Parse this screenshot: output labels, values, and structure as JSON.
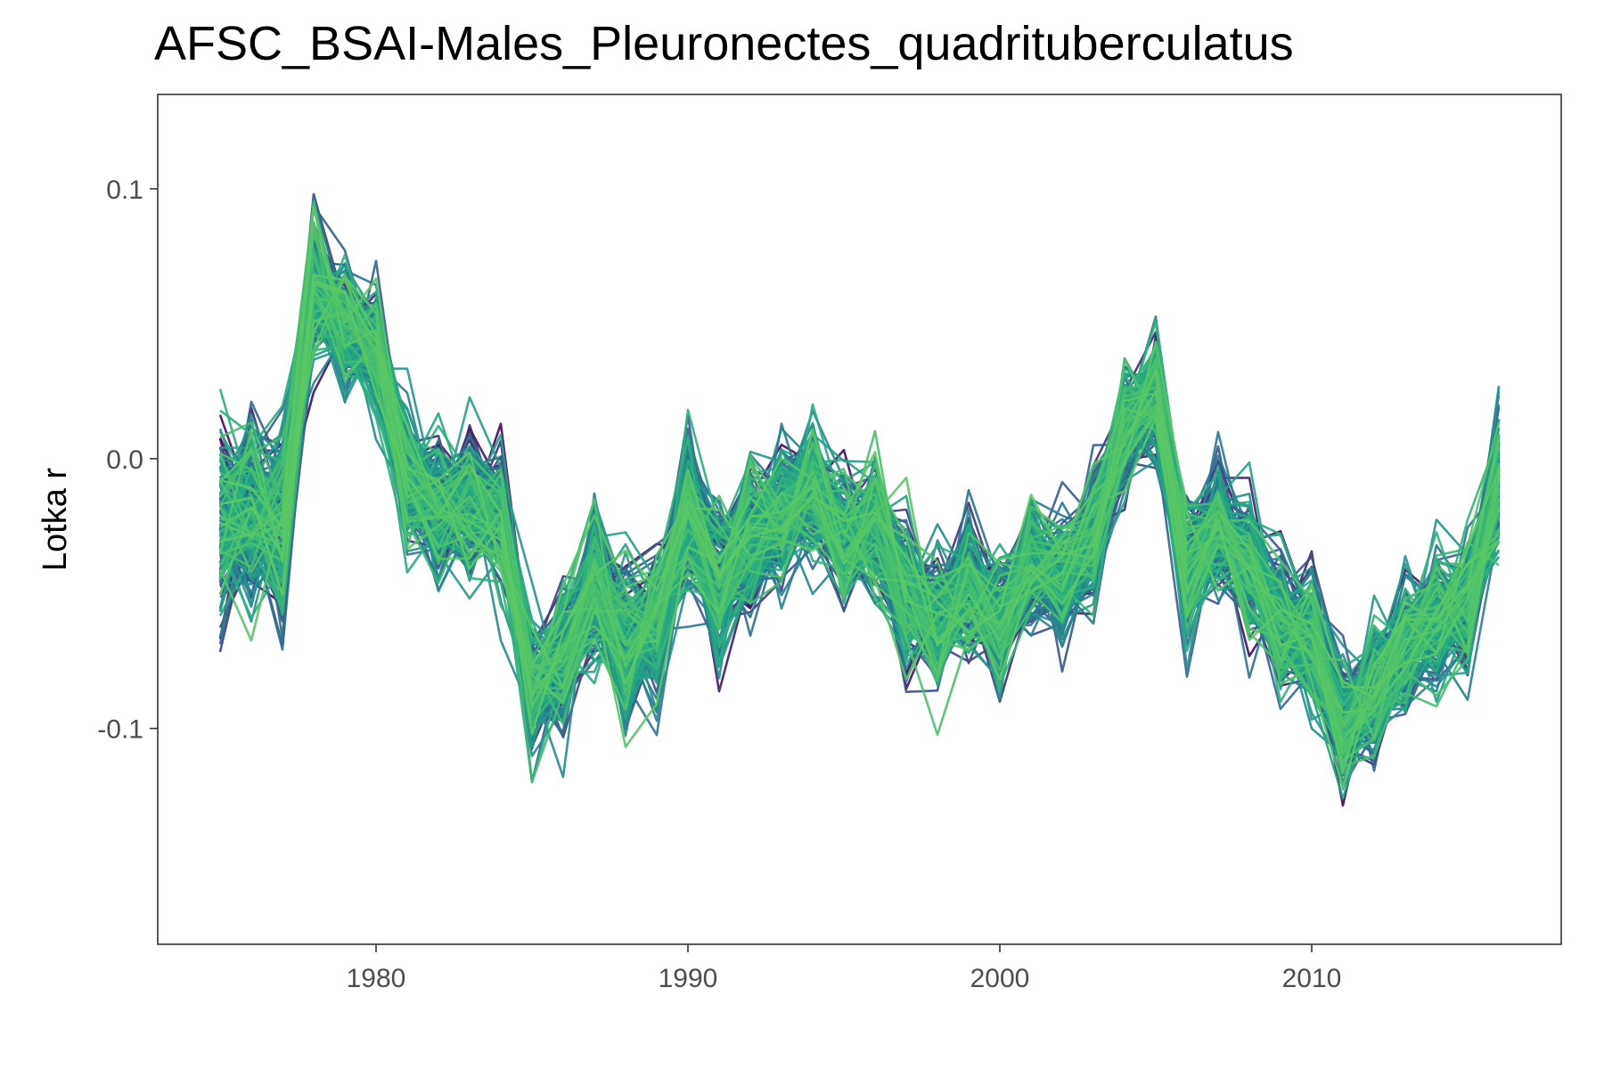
{
  "chart_data": {
    "type": "line",
    "title": "AFSC_BSAI-Males_Pleuronectes_quadrituberculatus",
    "xlabel": "",
    "ylabel": "Lotka r",
    "xlim": [
      1973,
      2018
    ],
    "ylim": [
      -0.18,
      0.135
    ],
    "x_ticks": [
      1980,
      1990,
      2000,
      2010
    ],
    "x_tick_labels": [
      "1980",
      "1990",
      "2000",
      "2010"
    ],
    "y_ticks": [
      0.1,
      0.0,
      -0.1
    ],
    "y_tick_labels": [
      "0.1",
      "0.0",
      "-0.1"
    ],
    "grid": false,
    "legend": "none",
    "palette": [
      "#440154",
      "#3b528b",
      "#2c728e",
      "#21908c",
      "#27ad81",
      "#5dc963"
    ],
    "n_trajectories": 200,
    "years": [
      1975,
      1976,
      1977,
      1978,
      1979,
      1980,
      1981,
      1982,
      1983,
      1984,
      1985,
      1986,
      1987,
      1988,
      1989,
      1990,
      1991,
      1992,
      1993,
      1994,
      1995,
      1996,
      1997,
      1998,
      1999,
      2000,
      2001,
      2002,
      2003,
      2004,
      2005,
      2006,
      2007,
      2008,
      2009,
      2010,
      2011,
      2012,
      2013,
      2014,
      2015,
      2016
    ],
    "central_values": [
      -0.025,
      -0.02,
      -0.022,
      0.065,
      0.05,
      0.04,
      -0.01,
      -0.02,
      -0.015,
      -0.02,
      -0.085,
      -0.075,
      -0.045,
      -0.07,
      -0.06,
      -0.02,
      -0.045,
      -0.03,
      -0.02,
      -0.01,
      -0.03,
      -0.025,
      -0.05,
      -0.06,
      -0.045,
      -0.06,
      -0.04,
      -0.045,
      -0.03,
      0.01,
      0.025,
      -0.04,
      -0.025,
      -0.04,
      -0.06,
      -0.07,
      -0.1,
      -0.085,
      -0.07,
      -0.06,
      -0.055,
      -0.01
    ],
    "spread_values": [
      0.032,
      0.03,
      0.03,
      0.025,
      0.022,
      0.02,
      0.022,
      0.022,
      0.022,
      0.022,
      0.022,
      0.022,
      0.025,
      0.025,
      0.025,
      0.025,
      0.025,
      0.025,
      0.022,
      0.022,
      0.022,
      0.022,
      0.022,
      0.022,
      0.022,
      0.022,
      0.02,
      0.02,
      0.02,
      0.02,
      0.02,
      0.022,
      0.022,
      0.022,
      0.022,
      0.022,
      0.022,
      0.022,
      0.022,
      0.022,
      0.022,
      0.025
    ]
  }
}
